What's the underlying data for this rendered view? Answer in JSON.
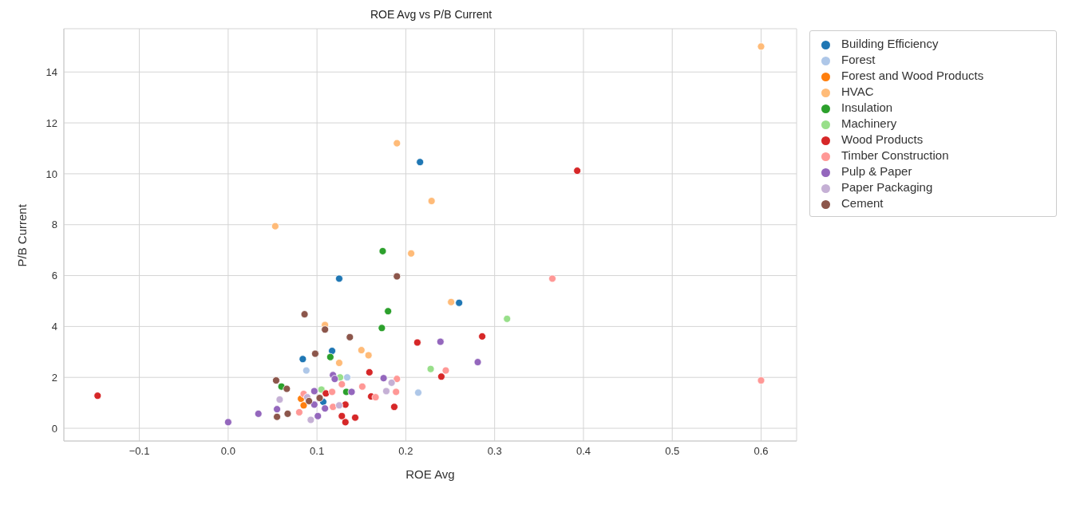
{
  "chart_data": {
    "type": "scatter",
    "title": "ROE Avg vs P/B Current",
    "xlabel": "ROE Avg",
    "ylabel": "P/B Current",
    "xlim": [
      -0.185,
      0.64
    ],
    "xticks": [
      -0.1,
      {
        "value": 0,
        "label": "0.0"
      },
      0.1,
      0.2,
      0.3,
      0.4,
      0.5,
      0.6
    ],
    "ylim": [
      -0.5,
      15.7
    ],
    "yticks": [
      0,
      2,
      4,
      6,
      8,
      10,
      12,
      14
    ],
    "grid": true,
    "legend": "top right",
    "marker": "circle",
    "series": [
      {
        "name": "Building Efficiency",
        "color": "#1f77b4",
        "x": [
          0.216,
          0.125,
          0.117,
          0.084,
          0.26,
          0.107
        ],
        "values": [
          10.46,
          5.88,
          3.04,
          2.72,
          4.93,
          1.04
        ]
      },
      {
        "name": "Forest",
        "color": "#aec7e8",
        "x": [
          0.088,
          0.214,
          0.134
        ],
        "values": [
          2.27,
          1.4,
          2.0
        ]
      },
      {
        "name": "Forest and Wood Products",
        "color": "#ff7f0e",
        "x": [
          0.082,
          0.085
        ],
        "values": [
          1.16,
          0.9
        ]
      },
      {
        "name": "HVAC",
        "color": "#ffbb78",
        "x": [
          0.6,
          0.19,
          0.229,
          0.053,
          0.206,
          0.109,
          0.15,
          0.158,
          0.125,
          0.251
        ],
        "values": [
          15.0,
          11.2,
          8.93,
          7.94,
          6.87,
          4.06,
          3.07,
          2.87,
          2.57,
          4.96
        ]
      },
      {
        "name": "Insulation",
        "color": "#2ca02c",
        "x": [
          0.174,
          0.18,
          0.173,
          0.115,
          0.06,
          0.133
        ],
        "values": [
          6.96,
          4.6,
          3.94,
          2.8,
          1.64,
          1.43
        ]
      },
      {
        "name": "Machinery",
        "color": "#98df8a",
        "x": [
          0.314,
          0.228,
          0.105,
          0.126
        ],
        "values": [
          4.3,
          2.33,
          1.52,
          2.0
        ]
      },
      {
        "name": "Wood Products",
        "color": "#d62728",
        "x": [
          -0.147,
          0.393,
          0.286,
          0.213,
          0.24,
          0.159,
          0.161,
          0.187,
          0.128,
          0.132,
          0.143,
          0.11,
          0.132
        ],
        "values": [
          1.28,
          10.12,
          3.61,
          3.37,
          2.03,
          2.2,
          1.25,
          0.84,
          0.48,
          0.24,
          0.42,
          1.37,
          0.93
        ]
      },
      {
        "name": "Timber Construction",
        "color": "#ff9896",
        "x": [
          0.365,
          0.6,
          0.245,
          0.19,
          0.189,
          0.151,
          0.128,
          0.117,
          0.118,
          0.08,
          0.085,
          0.166
        ],
        "values": [
          5.88,
          1.88,
          2.27,
          1.94,
          1.43,
          1.64,
          1.73,
          1.43,
          0.84,
          0.63,
          1.35,
          1.22
        ]
      },
      {
        "name": "Pulp & Paper",
        "color": "#9467bd",
        "x": [
          0.0,
          0.034,
          0.281,
          0.239,
          0.175,
          0.139,
          0.118,
          0.097,
          0.097,
          0.109,
          0.101,
          0.055,
          0.12
        ],
        "values": [
          0.24,
          0.57,
          2.6,
          3.4,
          1.97,
          1.43,
          2.09,
          1.46,
          0.93,
          0.78,
          0.48,
          0.75,
          1.94
        ]
      },
      {
        "name": "Paper Packaging",
        "color": "#c5b0d5",
        "x": [
          0.058,
          0.093,
          0.125,
          0.178,
          0.184,
          0.089
        ],
        "values": [
          1.13,
          0.33,
          0.9,
          1.46,
          1.79,
          1.22
        ]
      },
      {
        "name": "Cement",
        "color": "#8c564b",
        "x": [
          0.19,
          0.086,
          0.109,
          0.137,
          0.098,
          0.054,
          0.066,
          0.067,
          0.055,
          0.091,
          0.103
        ],
        "values": [
          5.97,
          4.48,
          3.88,
          3.58,
          2.93,
          1.88,
          1.55,
          0.57,
          0.45,
          1.07,
          1.19
        ]
      }
    ]
  }
}
